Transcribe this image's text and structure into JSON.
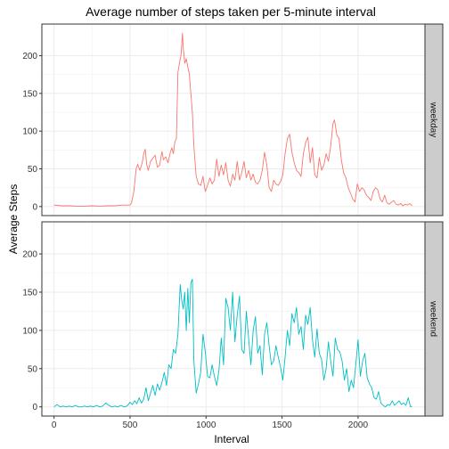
{
  "chart_data": {
    "type": "line",
    "title": "Average number of steps taken per 5-minute interval",
    "xlabel": "Interval",
    "ylabel": "Average Steps",
    "xlim": [
      -80,
      2440
    ],
    "ylim": [
      -12,
      242
    ],
    "x_ticks": [
      0,
      500,
      1000,
      1500,
      2000
    ],
    "y_ticks": [
      0,
      50,
      100,
      150,
      200
    ],
    "grid": true,
    "panels": [
      {
        "name": "weekday",
        "color": "#F8766D",
        "points": [
          [
            0,
            2
          ],
          [
            50,
            1
          ],
          [
            100,
            1
          ],
          [
            150,
            0.5
          ],
          [
            200,
            0.5
          ],
          [
            250,
            1
          ],
          [
            300,
            0.5
          ],
          [
            350,
            1
          ],
          [
            400,
            1
          ],
          [
            450,
            2
          ],
          [
            500,
            2
          ],
          [
            510,
            5
          ],
          [
            525,
            20
          ],
          [
            540,
            50
          ],
          [
            550,
            56
          ],
          [
            565,
            48
          ],
          [
            580,
            58
          ],
          [
            590,
            70
          ],
          [
            600,
            76
          ],
          [
            610,
            55
          ],
          [
            620,
            48
          ],
          [
            635,
            60
          ],
          [
            650,
            64
          ],
          [
            665,
            68
          ],
          [
            680,
            52
          ],
          [
            695,
            55
          ],
          [
            710,
            73
          ],
          [
            720,
            62
          ],
          [
            735,
            66
          ],
          [
            750,
            58
          ],
          [
            765,
            72
          ],
          [
            775,
            78
          ],
          [
            785,
            70
          ],
          [
            795,
            86
          ],
          [
            805,
            90
          ],
          [
            815,
            178
          ],
          [
            825,
            190
          ],
          [
            835,
            200
          ],
          [
            845,
            230
          ],
          [
            850,
            210
          ],
          [
            860,
            190
          ],
          [
            870,
            196
          ],
          [
            880,
            185
          ],
          [
            890,
            176
          ],
          [
            900,
            150
          ],
          [
            910,
            125
          ],
          [
            920,
            80
          ],
          [
            935,
            40
          ],
          [
            950,
            30
          ],
          [
            965,
            28
          ],
          [
            980,
            40
          ],
          [
            995,
            20
          ],
          [
            1010,
            28
          ],
          [
            1025,
            38
          ],
          [
            1040,
            30
          ],
          [
            1055,
            35
          ],
          [
            1070,
            63
          ],
          [
            1085,
            40
          ],
          [
            1100,
            55
          ],
          [
            1115,
            42
          ],
          [
            1130,
            58
          ],
          [
            1145,
            35
          ],
          [
            1160,
            27
          ],
          [
            1175,
            43
          ],
          [
            1190,
            35
          ],
          [
            1205,
            60
          ],
          [
            1220,
            35
          ],
          [
            1235,
            45
          ],
          [
            1250,
            60
          ],
          [
            1265,
            38
          ],
          [
            1280,
            48
          ],
          [
            1295,
            35
          ],
          [
            1310,
            43
          ],
          [
            1325,
            32
          ],
          [
            1340,
            30
          ],
          [
            1355,
            35
          ],
          [
            1370,
            48
          ],
          [
            1385,
            72
          ],
          [
            1400,
            55
          ],
          [
            1415,
            25
          ],
          [
            1430,
            20
          ],
          [
            1445,
            35
          ],
          [
            1460,
            30
          ],
          [
            1475,
            28
          ],
          [
            1490,
            33
          ],
          [
            1505,
            42
          ],
          [
            1520,
            70
          ],
          [
            1535,
            90
          ],
          [
            1550,
            96
          ],
          [
            1565,
            72
          ],
          [
            1580,
            58
          ],
          [
            1595,
            48
          ],
          [
            1610,
            45
          ],
          [
            1625,
            40
          ],
          [
            1640,
            70
          ],
          [
            1655,
            85
          ],
          [
            1670,
            92
          ],
          [
            1685,
            58
          ],
          [
            1700,
            78
          ],
          [
            1715,
            42
          ],
          [
            1730,
            38
          ],
          [
            1745,
            65
          ],
          [
            1760,
            48
          ],
          [
            1775,
            55
          ],
          [
            1790,
            70
          ],
          [
            1805,
            60
          ],
          [
            1820,
            80
          ],
          [
            1835,
            110
          ],
          [
            1845,
            115
          ],
          [
            1860,
            95
          ],
          [
            1875,
            90
          ],
          [
            1890,
            62
          ],
          [
            1905,
            45
          ],
          [
            1920,
            38
          ],
          [
            1935,
            25
          ],
          [
            1950,
            18
          ],
          [
            1965,
            10
          ],
          [
            1980,
            6
          ],
          [
            1995,
            30
          ],
          [
            2010,
            20
          ],
          [
            2025,
            25
          ],
          [
            2040,
            22
          ],
          [
            2055,
            15
          ],
          [
            2070,
            12
          ],
          [
            2085,
            8
          ],
          [
            2100,
            20
          ],
          [
            2115,
            25
          ],
          [
            2130,
            22
          ],
          [
            2145,
            10
          ],
          [
            2160,
            6
          ],
          [
            2175,
            15
          ],
          [
            2190,
            5
          ],
          [
            2205,
            3
          ],
          [
            2220,
            6
          ],
          [
            2235,
            8
          ],
          [
            2250,
            3
          ],
          [
            2265,
            2
          ],
          [
            2280,
            4
          ],
          [
            2295,
            1
          ],
          [
            2310,
            3
          ],
          [
            2325,
            2
          ],
          [
            2340,
            4
          ],
          [
            2355,
            1
          ]
        ]
      },
      {
        "name": "weekend",
        "color": "#00BFC4",
        "points": [
          [
            0,
            0
          ],
          [
            20,
            3
          ],
          [
            40,
            0
          ],
          [
            60,
            1
          ],
          [
            80,
            0
          ],
          [
            100,
            1
          ],
          [
            120,
            0
          ],
          [
            140,
            2
          ],
          [
            160,
            0
          ],
          [
            180,
            0
          ],
          [
            200,
            1
          ],
          [
            220,
            0
          ],
          [
            240,
            1
          ],
          [
            260,
            0
          ],
          [
            280,
            2
          ],
          [
            300,
            0
          ],
          [
            320,
            1
          ],
          [
            340,
            5
          ],
          [
            360,
            2
          ],
          [
            380,
            0
          ],
          [
            400,
            1
          ],
          [
            420,
            0
          ],
          [
            440,
            2
          ],
          [
            460,
            0
          ],
          [
            480,
            1
          ],
          [
            500,
            6
          ],
          [
            515,
            3
          ],
          [
            530,
            8
          ],
          [
            545,
            4
          ],
          [
            560,
            12
          ],
          [
            575,
            5
          ],
          [
            590,
            10
          ],
          [
            605,
            25
          ],
          [
            620,
            8
          ],
          [
            635,
            18
          ],
          [
            650,
            28
          ],
          [
            665,
            15
          ],
          [
            680,
            30
          ],
          [
            695,
            22
          ],
          [
            710,
            32
          ],
          [
            725,
            45
          ],
          [
            740,
            28
          ],
          [
            755,
            55
          ],
          [
            770,
            50
          ],
          [
            785,
            75
          ],
          [
            800,
            70
          ],
          [
            815,
            95
          ],
          [
            830,
            160
          ],
          [
            840,
            140
          ],
          [
            850,
            128
          ],
          [
            860,
            150
          ],
          [
            870,
            100
          ],
          [
            880,
            155
          ],
          [
            890,
            110
          ],
          [
            900,
            162
          ],
          [
            910,
            167
          ],
          [
            920,
            60
          ],
          [
            935,
            18
          ],
          [
            950,
            30
          ],
          [
            965,
            45
          ],
          [
            980,
            95
          ],
          [
            995,
            72
          ],
          [
            1010,
            40
          ],
          [
            1025,
            38
          ],
          [
            1040,
            55
          ],
          [
            1055,
            40
          ],
          [
            1070,
            28
          ],
          [
            1085,
            48
          ],
          [
            1100,
            90
          ],
          [
            1115,
            55
          ],
          [
            1130,
            142
          ],
          [
            1145,
            130
          ],
          [
            1160,
            100
          ],
          [
            1175,
            150
          ],
          [
            1190,
            85
          ],
          [
            1205,
            120
          ],
          [
            1220,
            145
          ],
          [
            1235,
            75
          ],
          [
            1250,
            70
          ],
          [
            1265,
            125
          ],
          [
            1280,
            90
          ],
          [
            1295,
            55
          ],
          [
            1310,
            100
          ],
          [
            1325,
            118
          ],
          [
            1340,
            70
          ],
          [
            1355,
            80
          ],
          [
            1370,
            42
          ],
          [
            1385,
            95
          ],
          [
            1400,
            110
          ],
          [
            1415,
            80
          ],
          [
            1430,
            55
          ],
          [
            1445,
            60
          ],
          [
            1460,
            80
          ],
          [
            1475,
            65
          ],
          [
            1490,
            52
          ],
          [
            1505,
            35
          ],
          [
            1520,
            65
          ],
          [
            1535,
            100
          ],
          [
            1550,
            80
          ],
          [
            1565,
            122
          ],
          [
            1580,
            110
          ],
          [
            1595,
            130
          ],
          [
            1610,
            95
          ],
          [
            1625,
            105
          ],
          [
            1640,
            75
          ],
          [
            1655,
            120
          ],
          [
            1670,
            108
          ],
          [
            1685,
            130
          ],
          [
            1700,
            88
          ],
          [
            1715,
            65
          ],
          [
            1730,
            102
          ],
          [
            1745,
            70
          ],
          [
            1760,
            62
          ],
          [
            1775,
            35
          ],
          [
            1790,
            50
          ],
          [
            1805,
            85
          ],
          [
            1820,
            60
          ],
          [
            1835,
            40
          ],
          [
            1850,
            90
          ],
          [
            1865,
            75
          ],
          [
            1880,
            72
          ],
          [
            1895,
            60
          ],
          [
            1910,
            35
          ],
          [
            1925,
            50
          ],
          [
            1940,
            20
          ],
          [
            1955,
            35
          ],
          [
            1970,
            25
          ],
          [
            1985,
            55
          ],
          [
            2000,
            88
          ],
          [
            2015,
            40
          ],
          [
            2030,
            60
          ],
          [
            2045,
            70
          ],
          [
            2060,
            38
          ],
          [
            2075,
            30
          ],
          [
            2090,
            25
          ],
          [
            2105,
            12
          ],
          [
            2120,
            10
          ],
          [
            2135,
            20
          ],
          [
            2150,
            5
          ],
          [
            2165,
            2
          ],
          [
            2180,
            0
          ],
          [
            2195,
            3
          ],
          [
            2210,
            2
          ],
          [
            2225,
            8
          ],
          [
            2240,
            2
          ],
          [
            2255,
            5
          ],
          [
            2270,
            8
          ],
          [
            2285,
            3
          ],
          [
            2300,
            5
          ],
          [
            2315,
            2
          ],
          [
            2330,
            12
          ],
          [
            2345,
            0
          ],
          [
            2355,
            1
          ]
        ]
      }
    ]
  }
}
